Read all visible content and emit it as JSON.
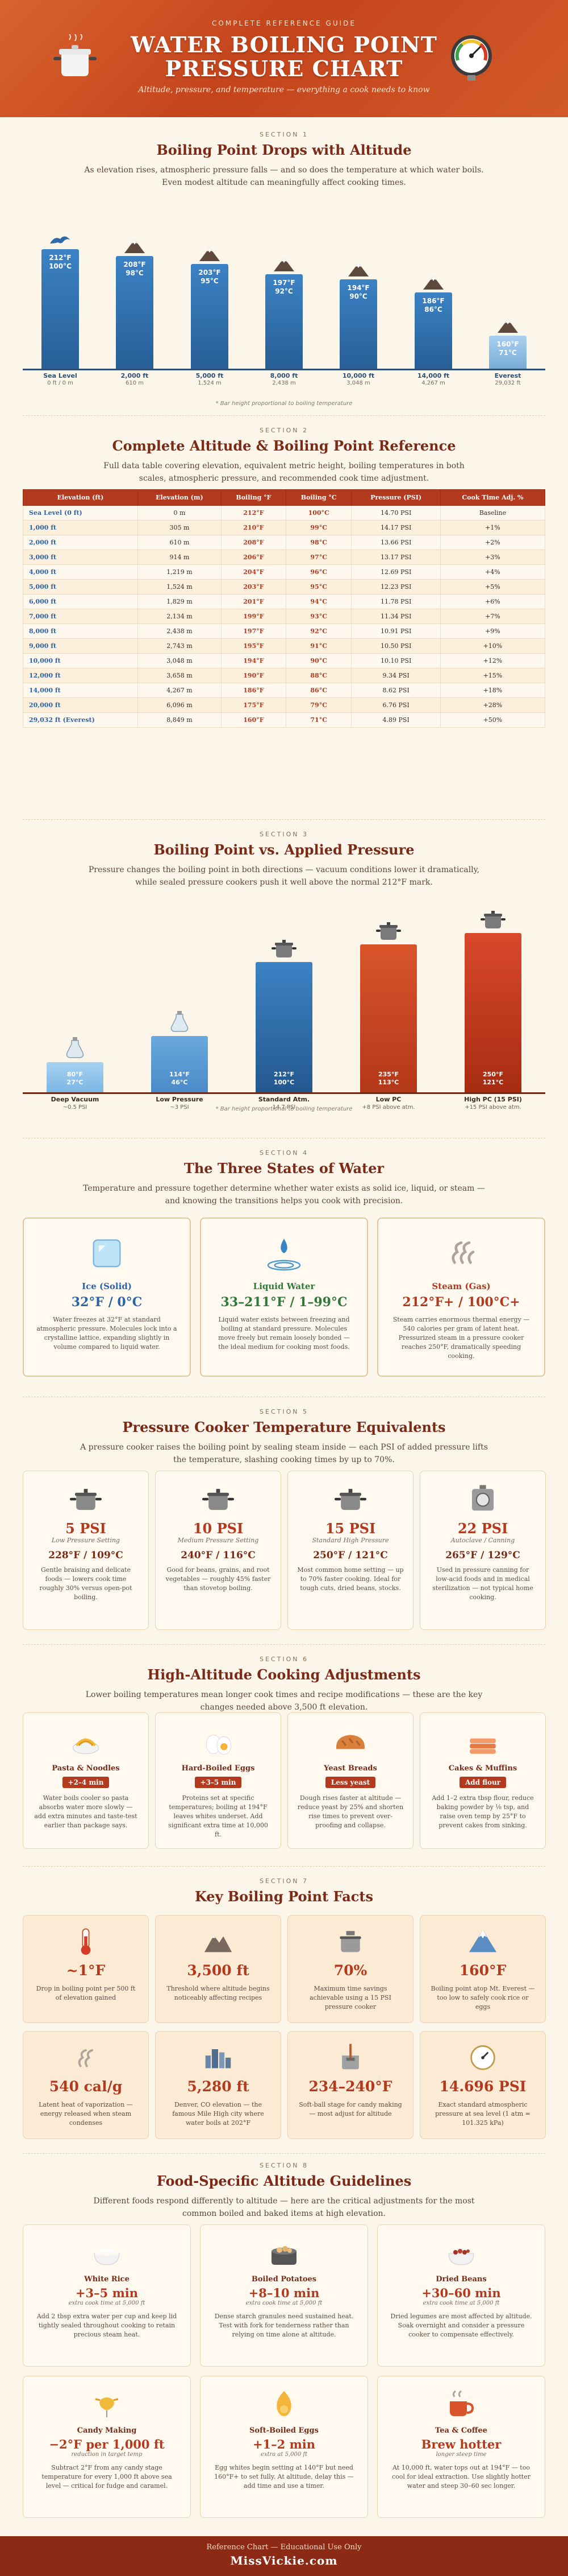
{
  "header": {
    "kicker": "COMPLETE REFERENCE GUIDE",
    "title_line1": "WATER BOILING POINT",
    "title_line2": "PRESSURE CHART",
    "tagline": "Altitude, pressure, and temperature — everything a cook needs to know"
  },
  "s1": {
    "num": "SECTION 1",
    "title": "Boiling Point Drops with Altitude",
    "sub": "As elevation rises, atmospheric pressure falls — and so does the temperature at which water boils. Even modest altitude can meaningfully affect cooking times.",
    "footnote": "* Bar height proportional to boiling temperature",
    "bars": [
      {
        "f": "212°F",
        "c": "100°C",
        "label": "Sea Level",
        "sub": "0 ft / 0 m"
      },
      {
        "f": "208°F",
        "c": "98°C",
        "label": "2,000 ft",
        "sub": "610 m"
      },
      {
        "f": "203°F",
        "c": "95°C",
        "label": "5,000 ft",
        "sub": "1,524 m"
      },
      {
        "f": "197°F",
        "c": "92°C",
        "label": "8,000 ft",
        "sub": "2,438 m"
      },
      {
        "f": "194°F",
        "c": "90°C",
        "label": "10,000 ft",
        "sub": "3,048 m"
      },
      {
        "f": "186°F",
        "c": "86°C",
        "label": "14,000 ft",
        "sub": "4,267 m"
      },
      {
        "f": "160°F",
        "c": "71°C",
        "label": "Everest",
        "sub": "29,032 ft"
      }
    ]
  },
  "s2": {
    "num": "SECTION 2",
    "title": "Complete Altitude & Boiling Point Reference",
    "sub": "Full data table covering elevation, equivalent metric height, boiling temperatures in both scales, atmospheric pressure, and recommended cook time adjustment.",
    "headers": [
      "Elevation (ft)",
      "Elevation (m)",
      "Boiling °F",
      "Boiling °C",
      "Pressure (PSI)",
      "Cook Time Adj. %"
    ],
    "rows": [
      [
        "Sea Level (0 ft)",
        "0 m",
        "212°F",
        "100°C",
        "14.70 PSI",
        "Baseline"
      ],
      [
        "1,000 ft",
        "305 m",
        "210°F",
        "99°C",
        "14.17 PSI",
        "+1%"
      ],
      [
        "2,000 ft",
        "610 m",
        "208°F",
        "98°C",
        "13.66 PSI",
        "+2%"
      ],
      [
        "3,000 ft",
        "914 m",
        "206°F",
        "97°C",
        "13.17 PSI",
        "+3%"
      ],
      [
        "4,000 ft",
        "1,219 m",
        "204°F",
        "96°C",
        "12.69 PSI",
        "+4%"
      ],
      [
        "5,000 ft",
        "1,524 m",
        "203°F",
        "95°C",
        "12.23 PSI",
        "+5%"
      ],
      [
        "6,000 ft",
        "1,829 m",
        "201°F",
        "94°C",
        "11.78 PSI",
        "+6%"
      ],
      [
        "7,000 ft",
        "2,134 m",
        "199°F",
        "93°C",
        "11.34 PSI",
        "+7%"
      ],
      [
        "8,000 ft",
        "2,438 m",
        "197°F",
        "92°C",
        "10.91 PSI",
        "+9%"
      ],
      [
        "9,000 ft",
        "2,743 m",
        "195°F",
        "91°C",
        "10.50 PSI",
        "+10%"
      ],
      [
        "10,000 ft",
        "3,048 m",
        "194°F",
        "90°C",
        "10.10 PSI",
        "+12%"
      ],
      [
        "12,000 ft",
        "3,658 m",
        "190°F",
        "88°C",
        "9.34 PSI",
        "+15%"
      ],
      [
        "14,000 ft",
        "4,267 m",
        "186°F",
        "86°C",
        "8.62 PSI",
        "+18%"
      ],
      [
        "20,000 ft",
        "6,096 m",
        "175°F",
        "79°C",
        "6.76 PSI",
        "+28%"
      ],
      [
        "29,032 ft (Everest)",
        "8,849 m",
        "160°F",
        "71°C",
        "4.89 PSI",
        "+50%"
      ]
    ]
  },
  "s3": {
    "num": "SECTION 3",
    "title": "Boiling Point vs. Applied Pressure",
    "sub": "Pressure changes the boiling point in both directions — vacuum conditions lower it dramatically, while sealed pressure cookers push it well above the normal 212°F mark.",
    "footnote": "* Bar height proportional to boiling temperature",
    "bars": [
      {
        "f": "80°F",
        "c": "27°C",
        "label": "Deep Vacuum",
        "sub": "~0.5 PSI"
      },
      {
        "f": "114°F",
        "c": "46°C",
        "label": "Low Pressure",
        "sub": "~3 PSI"
      },
      {
        "f": "212°F",
        "c": "100°C",
        "label": "Standard Atm.",
        "sub": "14.7 PSI"
      },
      {
        "f": "235°F",
        "c": "113°C",
        "label": "Low PC",
        "sub": "+8 PSI above atm."
      },
      {
        "f": "250°F",
        "c": "121°C",
        "label": "High PC (15 PSI)",
        "sub": "+15 PSI above atm."
      }
    ]
  },
  "s4": {
    "num": "SECTION 4",
    "title": "The Three States of Water",
    "sub": "Temperature and pressure together determine whether water exists as solid ice, liquid, or steam — and knowing the transitions helps you cook with precision.",
    "cards": [
      {
        "name": "Ice (Solid)",
        "temp": "32°F / 0°C",
        "desc": "Water freezes at 32°F at standard atmospheric pressure. Molecules lock into a crystalline lattice, expanding slightly in volume compared to liquid water.",
        "color": "#2b64a8"
      },
      {
        "name": "Liquid Water",
        "temp": "33–211°F / 1–99°C",
        "desc": "Liquid water exists between freezing and boiling at standard pressure. Molecules move freely but remain loosely bonded — the ideal medium for cooking most foods.",
        "color": "#2f7a3a"
      },
      {
        "name": "Steam (Gas)",
        "temp": "212°F+ / 100°C+",
        "desc": "Steam carries enormous thermal energy — 540 calories per gram of latent heat. Pressurized steam in a pressure cooker reaches 250°F, dramatically speeding cooking.",
        "color": "#b43a1f"
      }
    ]
  },
  "s5": {
    "num": "SECTION 5",
    "title": "Pressure Cooker Temperature Equivalents",
    "sub": "A pressure cooker raises the boiling point by sealing steam inside — each PSI of added pressure lifts the temperature, slashing cooking times by up to 70%.",
    "cards": [
      {
        "psi": "5 PSI",
        "mode": "Low Pressure Setting",
        "temp": "228°F / 109°C",
        "desc": "Gentle braising and delicate foods — lowers cook time roughly 30% versus open-pot boiling."
      },
      {
        "psi": "10 PSI",
        "mode": "Medium Pressure Setting",
        "temp": "240°F / 116°C",
        "desc": "Good for beans, grains, and root vegetables — roughly 45% faster than stovetop boiling."
      },
      {
        "psi": "15 PSI",
        "mode": "Standard High Pressure",
        "temp": "250°F / 121°C",
        "desc": "Most common home setting — up to 70% faster cooking. Ideal for tough cuts, dried beans, stocks."
      },
      {
        "psi": "22 PSI",
        "mode": "Autoclave / Canning",
        "temp": "265°F / 129°C",
        "desc": "Used in pressure canning for low-acid foods and in medical sterilization — not typical home cooking."
      }
    ]
  },
  "s6": {
    "num": "SECTION 6",
    "title": "High-Altitude Cooking Adjustments",
    "sub": "Lower boiling temperatures mean longer cook times and recipe modifications — these are the key changes needed above 3,500 ft elevation.",
    "cards": [
      {
        "name": "Pasta & Noodles",
        "badge": "+2–4 min",
        "desc": "Water boils cooler so pasta absorbs water more slowly — add extra minutes and taste-test earlier than package says."
      },
      {
        "name": "Hard-Boiled Eggs",
        "badge": "+3–5 min",
        "desc": "Proteins set at specific temperatures; boiling at 194°F leaves whites underset. Add significant extra time at 10,000 ft."
      },
      {
        "name": "Yeast Breads",
        "badge": "Less yeast",
        "desc": "Dough rises faster at altitude — reduce yeast by 25% and shorten rise times to prevent over-proofing and collapse."
      },
      {
        "name": "Cakes & Muffins",
        "badge": "Add flour",
        "desc": "Add 1–2 extra tbsp flour, reduce baking powder by ⅛ tsp, and raise oven temp by 25°F to prevent cakes from sinking."
      }
    ]
  },
  "s7": {
    "num": "SECTION 7",
    "title": "Key Boiling Point Facts",
    "cards": [
      {
        "big": "~1°F",
        "desc": "Drop in boiling point per 500 ft of elevation gained"
      },
      {
        "big": "3,500 ft",
        "desc": "Threshold where altitude begins noticeably affecting recipes"
      },
      {
        "big": "70%",
        "desc": "Maximum time savings achievable using a 15 PSI pressure cooker"
      },
      {
        "big": "160°F",
        "desc": "Boiling point atop Mt. Everest — too low to safely cook rice or eggs"
      },
      {
        "big": "540 cal/g",
        "desc": "Latent heat of vaporization — energy released when steam condenses"
      },
      {
        "big": "5,280 ft",
        "desc": "Denver, CO elevation — the famous Mile High city where water boils at 202°F"
      },
      {
        "big": "234–240°F",
        "desc": "Soft-ball stage for candy making — most adjust for altitude"
      },
      {
        "big": "14.696 PSI",
        "desc": "Exact standard atmospheric pressure at sea level (1 atm = 101.325 kPa)"
      }
    ]
  },
  "s8": {
    "num": "SECTION 8",
    "title": "Food-Specific Altitude Guidelines",
    "sub": "Different foods respond differently to altitude — here are the critical adjustments for the most common boiled and baked items at high elevation.",
    "cards": [
      {
        "name": "White Rice",
        "adj": "+3–5 min",
        "note": "extra cook time at 5,000 ft",
        "desc": "Add 2 tbsp extra water per cup and keep lid tightly sealed throughout cooking to retain precious steam heat."
      },
      {
        "name": "Boiled Potatoes",
        "adj": "+8–10 min",
        "note": "extra cook time at 5,000 ft",
        "desc": "Dense starch granules need sustained heat. Test with fork for tenderness rather than relying on time alone at altitude."
      },
      {
        "name": "Dried Beans",
        "adj": "+30–60 min",
        "note": "extra cook time at 5,000 ft",
        "desc": "Dried legumes are most affected by altitude. Soak overnight and consider a pressure cooker to compensate effectively."
      },
      {
        "name": "Candy Making",
        "adj": "−2°F per 1,000 ft",
        "note": "reduction in target temp",
        "desc": "Subtract 2°F from any candy stage temperature for every 1,000 ft above sea level — critical for fudge and caramel."
      },
      {
        "name": "Soft-Boiled Eggs",
        "adj": "+1–2 min",
        "note": "extra at 5,000 ft",
        "desc": "Egg whites begin setting at 140°F but need 160°F+ to set fully. At altitude, delay this — add time and use a timer."
      },
      {
        "name": "Tea & Coffee",
        "adj": "Brew hotter",
        "note": "longer steep time",
        "desc": "At 10,000 ft, water tops out at 194°F — too cool for ideal extraction. Use slightly hotter water and steep 30–60 sec longer."
      }
    ]
  },
  "footer": {
    "line1": "Reference Chart — Educational Use Only",
    "line2": "MissVickie.com"
  }
}
